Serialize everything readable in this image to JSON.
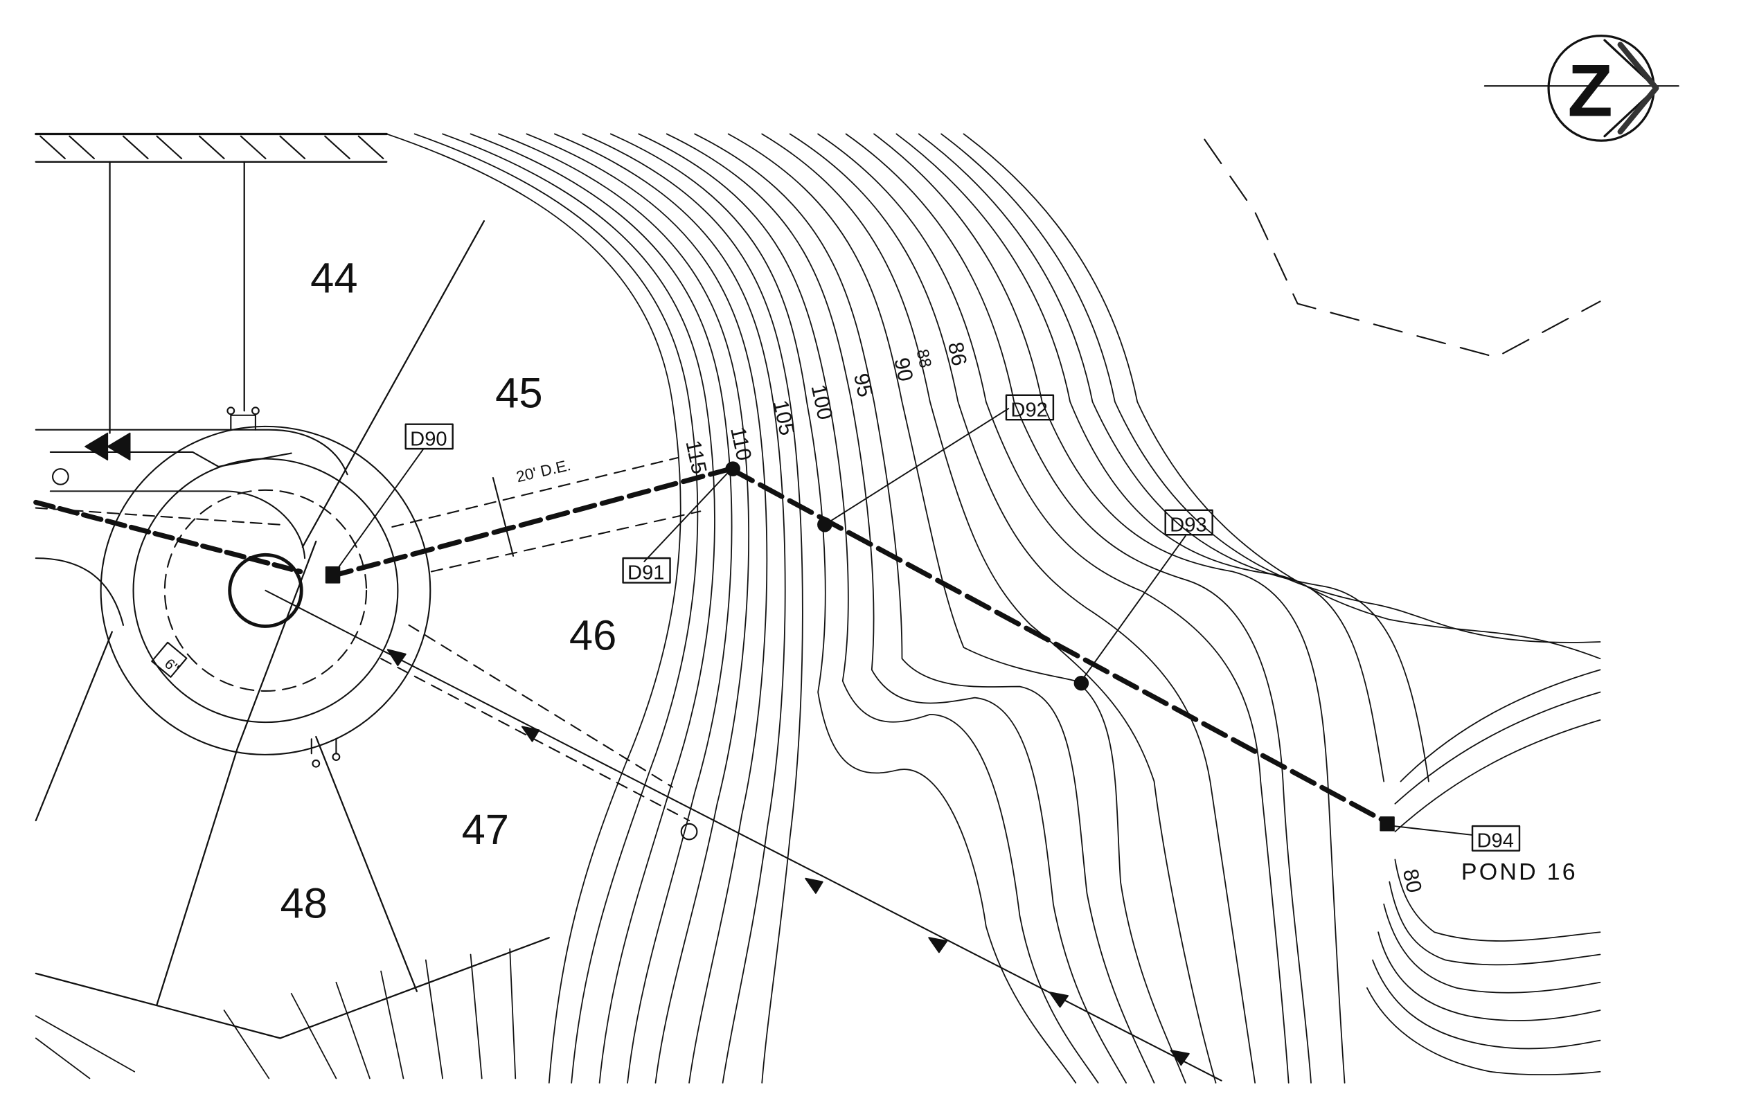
{
  "drawing": {
    "north_arrow": {
      "letter": "Z",
      "icon": "north-arrow-icon"
    },
    "lots": [
      {
        "id": "lot-44",
        "label": "44"
      },
      {
        "id": "lot-45",
        "label": "45"
      },
      {
        "id": "lot-46",
        "label": "46"
      },
      {
        "id": "lot-47",
        "label": "47"
      },
      {
        "id": "lot-48",
        "label": "48"
      }
    ],
    "structures": [
      {
        "id": "d90",
        "label": "D90"
      },
      {
        "id": "d91",
        "label": "D91"
      },
      {
        "id": "d92",
        "label": "D92"
      },
      {
        "id": "d93",
        "label": "D93"
      },
      {
        "id": "d94",
        "label": "D94"
      }
    ],
    "easement_label": "20' D.E.",
    "pipe_size_label": "6\"",
    "pond_label": "POND 16",
    "contour_labels": [
      "115",
      "110",
      "105",
      "100",
      "95",
      "90",
      "88",
      "86",
      "80"
    ],
    "line_color": "#111111",
    "background_color": "#ffffff"
  }
}
